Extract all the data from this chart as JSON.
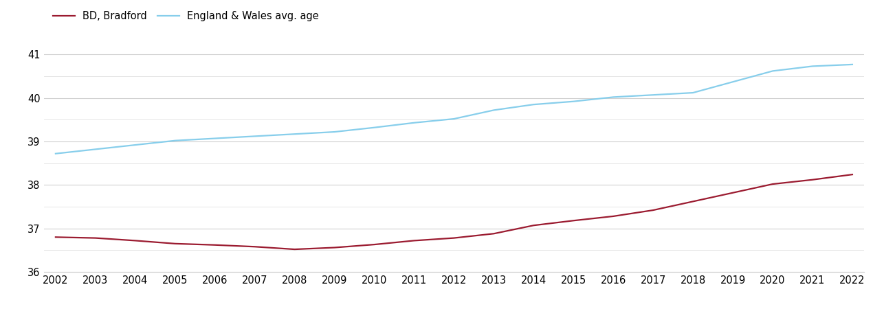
{
  "years": [
    2002,
    2003,
    2004,
    2005,
    2006,
    2007,
    2008,
    2009,
    2010,
    2011,
    2012,
    2013,
    2014,
    2015,
    2016,
    2017,
    2018,
    2019,
    2020,
    2021,
    2022
  ],
  "bradford": [
    36.8,
    36.78,
    36.72,
    36.65,
    36.62,
    36.58,
    36.52,
    36.56,
    36.63,
    36.72,
    36.78,
    36.88,
    37.07,
    37.18,
    37.28,
    37.42,
    37.62,
    37.82,
    38.02,
    38.12,
    38.24
  ],
  "england_wales": [
    38.72,
    38.82,
    38.92,
    39.02,
    39.07,
    39.12,
    39.17,
    39.22,
    39.32,
    39.43,
    39.52,
    39.72,
    39.85,
    39.92,
    40.02,
    40.07,
    40.12,
    40.37,
    40.62,
    40.73,
    40.77
  ],
  "bradford_color": "#9B1B30",
  "england_wales_color": "#87CEEB",
  "legend_labels": [
    "BD, Bradford",
    "England & Wales avg. age"
  ],
  "ylim": [
    36,
    41.4
  ],
  "yticks": [
    36,
    37,
    38,
    39,
    40,
    41
  ],
  "minor_yticks": [
    36.5,
    37.5,
    38.5,
    39.5,
    40.5
  ],
  "background_color": "#ffffff",
  "grid_color": "#d0d0d0",
  "minor_grid_color": "#e0e0e0",
  "line_width": 1.6,
  "font_size": 10.5
}
